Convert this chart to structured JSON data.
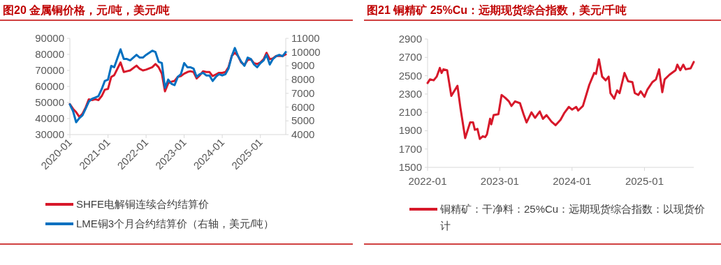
{
  "chart_data": [
    {
      "type": "line",
      "title": "图20  金属铜价格，元/吨，美元/吨",
      "xlim": [
        "2020-01",
        "2025-09"
      ],
      "xticks": [
        "2020-01",
        "2021-01",
        "2022-01",
        "2023-01",
        "2024-01",
        "2025-01"
      ],
      "ylim": [
        30000,
        90000
      ],
      "yticks": [
        30000,
        40000,
        50000,
        60000,
        70000,
        80000,
        90000
      ],
      "y2lim": [
        4000,
        11000
      ],
      "y2ticks": [
        4000,
        5000,
        6000,
        7000,
        8000,
        9000,
        10000,
        11000
      ],
      "grid": false,
      "legend": "bottom",
      "line_style": "solid",
      "marker": "none",
      "x": [
        "2020-01",
        "2020-02",
        "2020-03",
        "2020-04",
        "2020-05",
        "2020-06",
        "2020-07",
        "2020-08",
        "2020-09",
        "2020-10",
        "2020-11",
        "2020-12",
        "2021-01",
        "2021-02",
        "2021-03",
        "2021-05",
        "2021-06",
        "2021-07",
        "2021-08",
        "2021-10",
        "2021-11",
        "2021-12",
        "2022-01",
        "2022-03",
        "2022-04",
        "2022-05",
        "2022-06",
        "2022-07",
        "2022-08",
        "2022-09",
        "2022-10",
        "2022-11",
        "2022-12",
        "2023-01",
        "2023-02",
        "2023-03",
        "2023-04",
        "2023-05",
        "2023-06",
        "2023-07",
        "2023-08",
        "2023-09",
        "2023-10",
        "2023-11",
        "2023-12",
        "2024-01",
        "2024-02",
        "2024-03",
        "2024-04",
        "2024-05",
        "2024-06",
        "2024-07",
        "2024-08",
        "2024-09",
        "2024-10",
        "2024-11",
        "2024-12",
        "2025-01",
        "2025-02",
        "2025-03",
        "2025-04",
        "2025-05",
        "2025-06",
        "2025-07",
        "2025-08",
        "2025-09"
      ],
      "series": [
        {
          "name": "SHFE电解铜连续合约结算价",
          "color": "#d7182a",
          "values": [
            49000,
            46000,
            44000,
            41000,
            43000,
            47000,
            52000,
            51500,
            52000,
            51500,
            54000,
            58000,
            58500,
            66000,
            67000,
            75000,
            69000,
            69500,
            70000,
            73000,
            71000,
            70000,
            70500,
            72000,
            74000,
            72000,
            68000,
            57000,
            62000,
            63000,
            63500,
            66000,
            66500,
            68000,
            69000,
            69500,
            69000,
            65000,
            67000,
            69500,
            69000,
            69000,
            66500,
            67500,
            68500,
            68500,
            69000,
            72000,
            79000,
            81000,
            79000,
            75000,
            73500,
            76500,
            77000,
            74500,
            74000,
            75000,
            77000,
            81000,
            77000,
            77500,
            79000,
            79000,
            79000,
            80000
          ]
        },
        {
          "name": "LME铜3个月合约结算价（右轴，美元/吨）",
          "color": "#0070c0",
          "axis": "y2",
          "values": [
            6200,
            5700,
            4900,
            5200,
            5400,
            5900,
            6400,
            6600,
            6700,
            6800,
            7300,
            7900,
            8000,
            9000,
            8900,
            10200,
            9500,
            9500,
            9400,
            9800,
            9600,
            9600,
            9800,
            10100,
            10000,
            9300,
            9200,
            7400,
            8000,
            7700,
            7600,
            8200,
            8400,
            9200,
            8900,
            8900,
            8800,
            8200,
            8400,
            8500,
            8300,
            8300,
            7900,
            8200,
            8400,
            8300,
            8400,
            8800,
            9700,
            10300,
            9700,
            9300,
            9000,
            9600,
            9500,
            9100,
            8900,
            9200,
            9400,
            9800,
            9100,
            9500,
            9700,
            9800,
            9700,
            10000
          ]
        }
      ]
    },
    {
      "type": "line",
      "title": "图21  铜精矿 25%Cu：远期现货综合指数，美元/千吨",
      "xlim": [
        "2022-01-01",
        "2025-09-07"
      ],
      "xticks": [
        "2022-01",
        "2023-01",
        "2024-01",
        "2025-01"
      ],
      "ylim": [
        1500,
        2900
      ],
      "yticks": [
        1500,
        1700,
        1900,
        2100,
        2300,
        2500,
        2700,
        2900
      ],
      "grid": false,
      "legend": "bottom",
      "line_style": "solid",
      "marker": "none",
      "x": [
        "2022-01-01",
        "2022-01-13",
        "2022-02-01",
        "2022-02-16",
        "2022-03-04",
        "2022-03-13",
        "2022-03-22",
        "2022-04-10",
        "2022-05-01",
        "2022-06-01",
        "2022-06-16",
        "2022-07-10",
        "2022-08-04",
        "2022-08-19",
        "2022-08-28",
        "2022-09-10",
        "2022-09-22",
        "2022-10-07",
        "2022-10-19",
        "2022-10-28",
        "2022-11-13",
        "2022-11-19",
        "2022-12-01",
        "2022-12-25",
        "2023-01-10",
        "2023-01-28",
        "2023-02-16",
        "2023-03-01",
        "2023-03-19",
        "2023-04-13",
        "2023-05-01",
        "2023-05-16",
        "2023-06-10",
        "2023-06-28",
        "2023-07-22",
        "2023-08-07",
        "2023-08-25",
        "2023-09-19",
        "2023-10-10",
        "2023-11-04",
        "2023-11-22",
        "2023-12-16",
        "2024-01-01",
        "2024-01-22",
        "2024-02-01",
        "2024-02-25",
        "2024-03-10",
        "2024-03-28",
        "2024-04-22",
        "2024-05-01",
        "2024-05-16",
        "2024-06-01",
        "2024-06-19",
        "2024-07-04",
        "2024-07-13",
        "2024-08-01",
        "2024-08-16",
        "2024-08-28",
        "2024-09-22",
        "2024-10-10",
        "2024-11-01",
        "2024-11-13",
        "2024-12-01",
        "2024-12-13",
        "2025-01-01",
        "2025-01-16",
        "2025-02-10",
        "2025-02-28",
        "2025-03-16",
        "2025-04-01",
        "2025-04-13",
        "2025-05-07",
        "2025-06-07",
        "2025-06-16",
        "2025-07-01",
        "2025-07-16",
        "2025-07-28",
        "2025-08-22",
        "2025-09-07"
      ],
      "series": [
        {
          "name": "铜精矿：干净料：25%Cu：远期现货综合指数：以现货价计",
          "color": "#d7182a",
          "values": [
            2420,
            2460,
            2450,
            2490,
            2585,
            2530,
            2570,
            2560,
            2280,
            2390,
            2150,
            1820,
            1990,
            1990,
            1910,
            1920,
            1810,
            1840,
            1830,
            1860,
            2030,
            1970,
            2070,
            2080,
            2290,
            2260,
            2220,
            2170,
            2220,
            2200,
            2080,
            1990,
            2100,
            2040,
            2110,
            2030,
            2070,
            2000,
            1960,
            2020,
            2090,
            2160,
            2130,
            2160,
            2120,
            2170,
            2270,
            2400,
            2530,
            2520,
            2680,
            2490,
            2450,
            2490,
            2310,
            2250,
            2340,
            2310,
            2530,
            2440,
            2430,
            2310,
            2290,
            2330,
            2270,
            2350,
            2430,
            2460,
            2570,
            2320,
            2460,
            2510,
            2560,
            2620,
            2560,
            2620,
            2570,
            2580,
            2650
          ]
        }
      ]
    }
  ]
}
